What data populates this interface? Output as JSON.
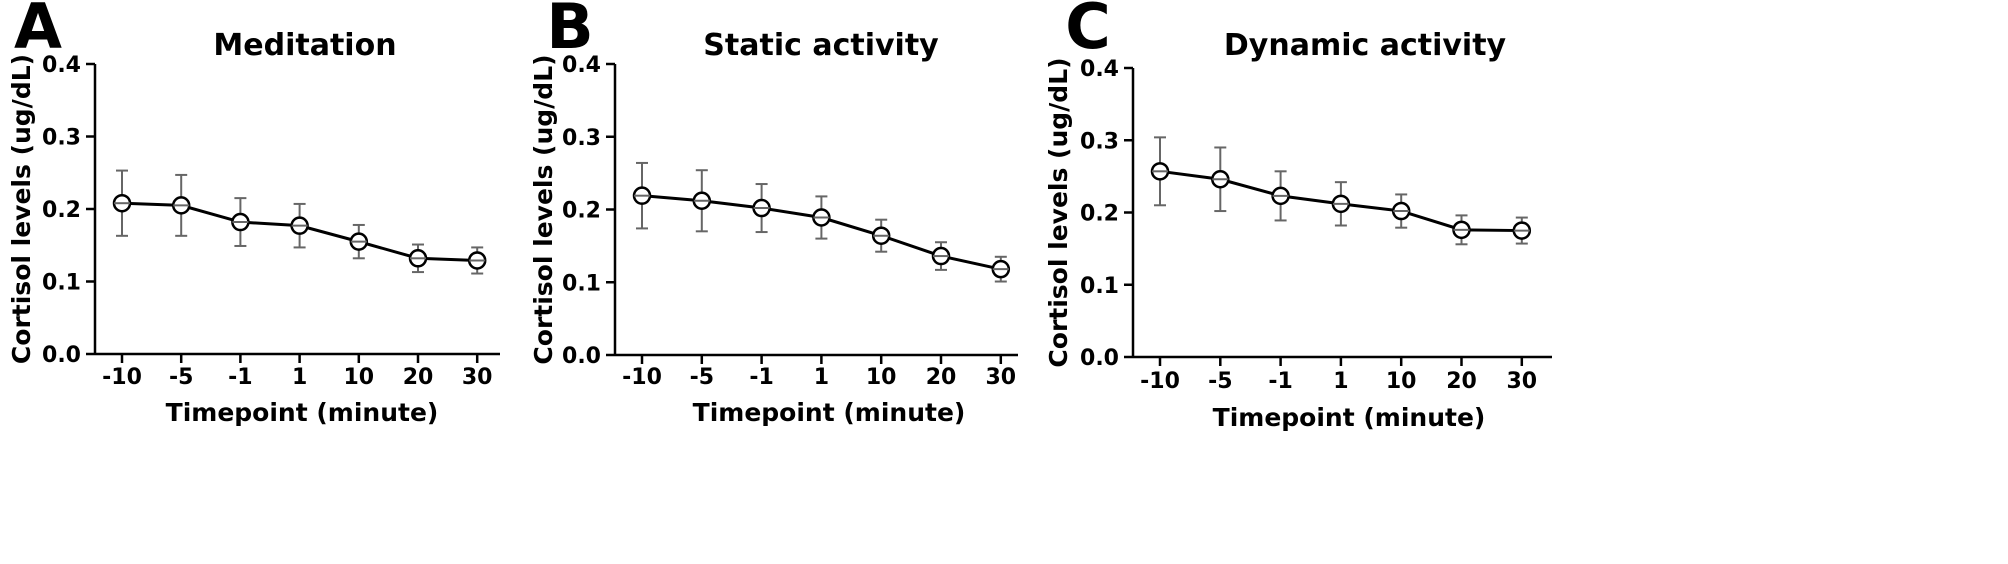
{
  "chart_data": [
    {
      "type": "line",
      "panel": "A",
      "title": "Meditation",
      "xlabel": "Timepoint (minute)",
      "ylabel": "Cortisol levels (ug/dL)",
      "categories": [
        "-10",
        "-5",
        "-1",
        "1",
        "10",
        "20",
        "30"
      ],
      "ylim": [
        0,
        0.4
      ],
      "yticks": [
        "0.0",
        "0.1",
        "0.2",
        "0.3",
        "0.4"
      ],
      "values": [
        0.208,
        0.205,
        0.182,
        0.177,
        0.155,
        0.132,
        0.129
      ],
      "errors": [
        0.045,
        0.042,
        0.033,
        0.03,
        0.023,
        0.019,
        0.018
      ]
    },
    {
      "type": "line",
      "panel": "B",
      "title": "Static activity",
      "xlabel": "Timepoint (minute)",
      "ylabel": "Cortisol levels (ug/dL)",
      "categories": [
        "-10",
        "-5",
        "-1",
        "1",
        "10",
        "20",
        "30"
      ],
      "ylim": [
        0,
        0.4
      ],
      "yticks": [
        "0.0",
        "0.1",
        "0.2",
        "0.3",
        "0.4"
      ],
      "values": [
        0.219,
        0.212,
        0.202,
        0.189,
        0.164,
        0.136,
        0.118
      ],
      "errors": [
        0.045,
        0.042,
        0.033,
        0.029,
        0.022,
        0.019,
        0.017
      ]
    },
    {
      "type": "line",
      "panel": "C",
      "title": "Dynamic activity",
      "xlabel": "Timepoint (minute)",
      "ylabel": "Cortisol levels (ug/dL)",
      "categories": [
        "-10",
        "-5",
        "-1",
        "1",
        "10",
        "20",
        "30"
      ],
      "ylim": [
        0,
        0.4
      ],
      "yticks": [
        "0.0",
        "0.1",
        "0.2",
        "0.3",
        "0.4"
      ],
      "values": [
        0.257,
        0.246,
        0.223,
        0.212,
        0.202,
        0.176,
        0.175
      ],
      "errors": [
        0.047,
        0.044,
        0.034,
        0.03,
        0.023,
        0.02,
        0.018
      ]
    }
  ]
}
